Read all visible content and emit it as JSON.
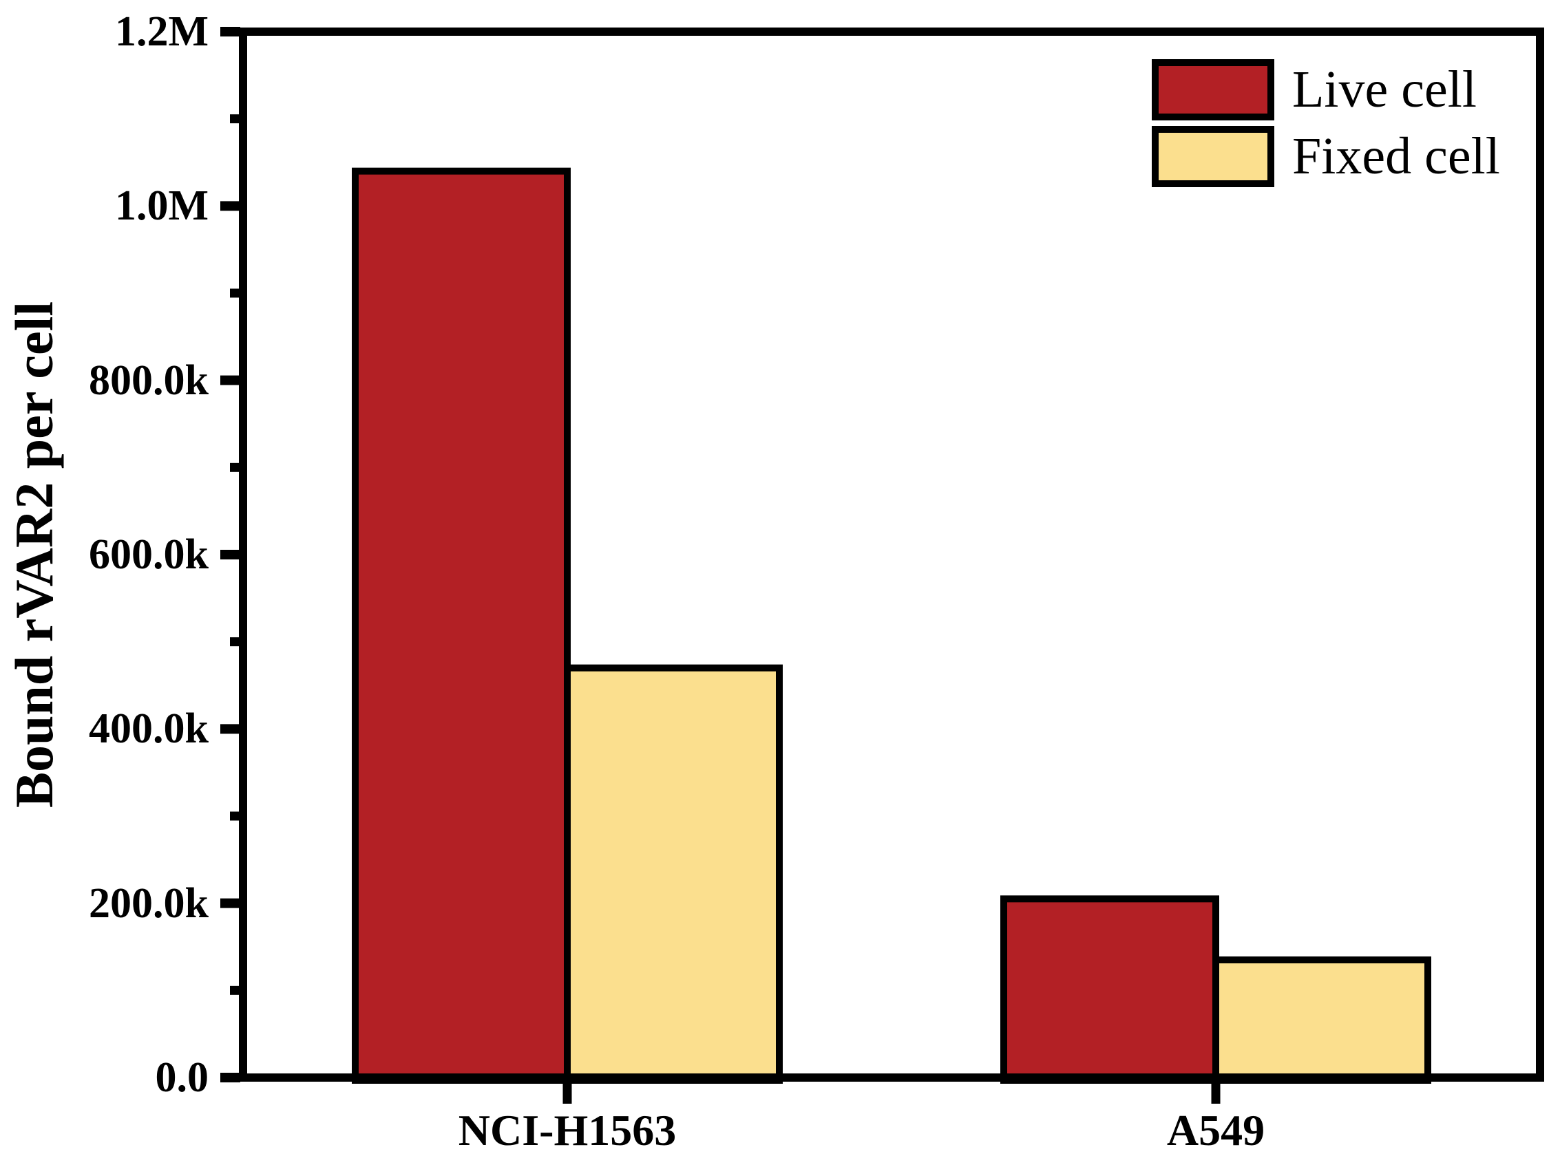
{
  "chart_data": {
    "type": "bar",
    "title": "",
    "ylabel": "Bound rVAR2 per cell",
    "xlabel": "",
    "categories": [
      "NCI-H1563",
      "A549"
    ],
    "series": [
      {
        "name": "Live cell",
        "color": "#b32025",
        "values": [
          1040000,
          205000
        ]
      },
      {
        "name": "Fixed cell",
        "color": "#fbdf8e",
        "values": [
          470000,
          135000
        ]
      }
    ],
    "ylim": [
      0,
      1200000
    ],
    "y_major_ticks": [
      {
        "value": 0,
        "label": "0.0"
      },
      {
        "value": 200000,
        "label": "200.0k"
      },
      {
        "value": 400000,
        "label": "400.0k"
      },
      {
        "value": 600000,
        "label": "600.0k"
      },
      {
        "value": 800000,
        "label": "800.0k"
      },
      {
        "value": 1000000,
        "label": "1.0M"
      },
      {
        "value": 1200000,
        "label": "1.2M"
      }
    ],
    "y_minor_ticks": [
      100000,
      300000,
      500000,
      700000,
      900000,
      1100000
    ],
    "grid": false,
    "legend_position": "top-right-inside",
    "bar_border_color": "#000000",
    "axis_color": "#000000",
    "background_color": "#ffffff"
  }
}
